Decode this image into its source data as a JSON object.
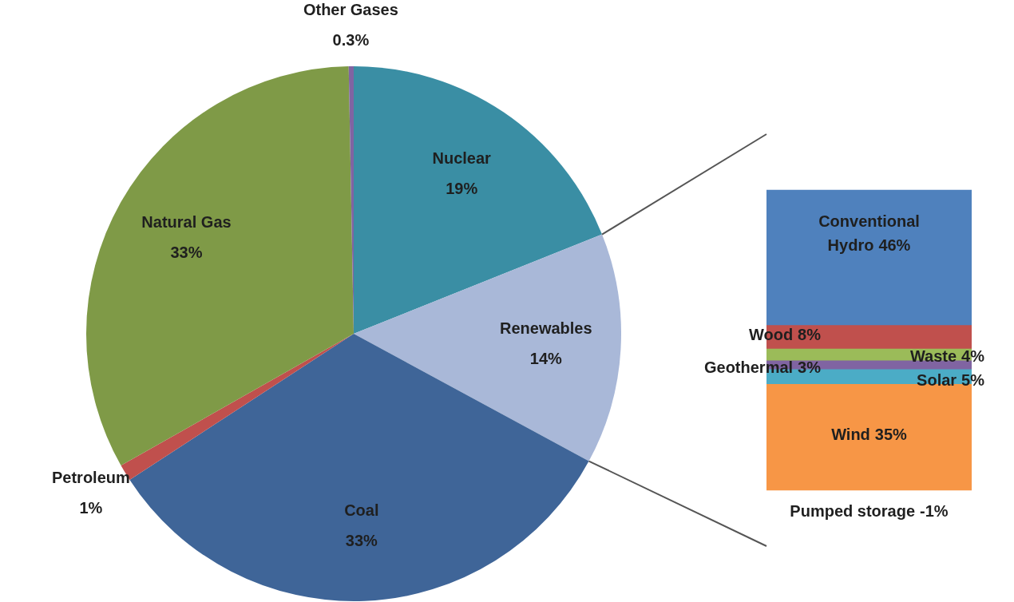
{
  "chart_data": [
    {
      "type": "pie",
      "categories": [
        "Nuclear",
        "Renewables",
        "Coal",
        "Petroleum",
        "Natural Gas",
        "Other Gases"
      ],
      "values": [
        19,
        14,
        33,
        1,
        33,
        0.3
      ],
      "value_labels": [
        "19%",
        "14%",
        "33%",
        "1%",
        "33%",
        "0.3%"
      ],
      "colors": [
        "#3a8ea4",
        "#a9b8d8",
        "#3f6598",
        "#c0504d",
        "#7f9a47",
        "#8064a2"
      ]
    },
    {
      "type": "bar",
      "stacked": true,
      "categories": [
        null
      ],
      "series": [
        {
          "name": "Wind",
          "color": "#f79646",
          "values": [
            35
          ],
          "value_labels": [
            "35%"
          ]
        },
        {
          "name": "Solar",
          "color": "#4bacc6",
          "values": [
            5
          ],
          "value_labels": [
            "5%"
          ]
        },
        {
          "name": "Geothermal",
          "color": "#8064a2",
          "values": [
            3
          ],
          "value_labels": [
            "3%"
          ]
        },
        {
          "name": "Waste",
          "color": "#9bbb59",
          "values": [
            4
          ],
          "value_labels": [
            "4%"
          ]
        },
        {
          "name": "Wood",
          "color": "#c0504d",
          "values": [
            8
          ],
          "value_labels": [
            "8%"
          ]
        },
        {
          "name": "Conventional Hydro",
          "color": "#4f81bd",
          "values": [
            46
          ],
          "value_labels": [
            "46%"
          ]
        },
        {
          "name": "Pumped storage",
          "color": "#f79646",
          "values": [
            -1
          ],
          "value_labels": [
            "-1%"
          ]
        }
      ]
    }
  ]
}
